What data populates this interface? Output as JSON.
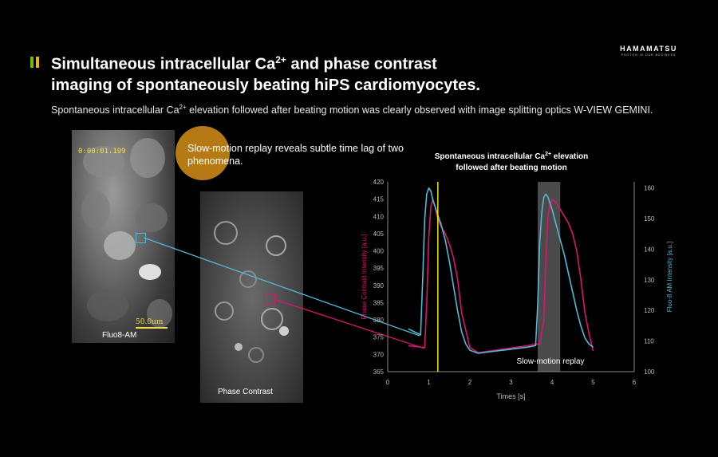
{
  "logo": {
    "name": "HAMAMATSU",
    "tagline": "PHOTON IS OUR BUSINESS"
  },
  "title": {
    "line1_pre": "Simultaneous intracellular Ca",
    "line1_sup": "2+",
    "line1_post": " and phase contrast",
    "line2": "imaging of spontaneously beating hiPS cardiomyocytes."
  },
  "subtitle": {
    "pre": "Spontaneous intracellular Ca",
    "sup": "2+",
    "post": " elevation followed after beating motion was clearly observed with image splitting optics W-VIEW GEMINI."
  },
  "callout": "Slow-motion replay reveals subtle time lag of two phenomena.",
  "fluo_image": {
    "timestamp": "0:00:01.199",
    "scale_bar": "50.0um",
    "label": "Fluo8-AM"
  },
  "phase_image": {
    "label": "Phase Contrast"
  },
  "colors": {
    "phase": "#d9166e",
    "fluo": "#55b8d6",
    "cursor": "#f2e619",
    "accent_green": "#7ab800",
    "accent_yellow": "#e8b800",
    "bubble": "#b57a14"
  },
  "chart_data": {
    "type": "line",
    "title_line1": "Spontaneous intracellular Ca",
    "title_sup": "2+",
    "title_line1_post": " elevation",
    "title_line2": "followed after beating motion",
    "xlabel": "Times [s]",
    "ylabel_left": "Phase Contrast Intensity [a.u.]",
    "ylabel_right": "Fluo-8 AM Intensity [a.u.]",
    "xlim": [
      0,
      6
    ],
    "ylim_left": [
      365,
      420
    ],
    "ylim_right": [
      100,
      162
    ],
    "x_ticks": [
      "0",
      "1",
      "2",
      "3",
      "4",
      "5",
      "6"
    ],
    "y_ticks_left": [
      "365",
      "370",
      "375",
      "380",
      "385",
      "390",
      "395",
      "400",
      "405",
      "410",
      "415",
      "420"
    ],
    "y_ticks_right": [
      "100",
      "110",
      "120",
      "130",
      "140",
      "150",
      "160"
    ],
    "cursor_x": 1.22,
    "highlight_x": [
      3.65,
      4.2
    ],
    "annotation": "Slow-motion replay",
    "series": [
      {
        "axis": "left",
        "x": [
          0.5,
          0.9,
          0.95,
          1.0,
          1.05,
          1.1,
          1.15,
          1.2,
          1.3,
          1.4,
          1.5,
          1.6,
          1.7,
          1.8,
          2.0,
          2.2,
          2.5,
          2.8,
          3.1,
          3.4,
          3.6,
          3.7,
          3.8,
          3.85,
          3.9,
          3.95,
          4.0,
          4.1,
          4.2,
          4.3,
          4.4,
          4.5,
          4.6,
          4.7,
          4.8,
          4.9,
          5.0
        ],
        "y": [
          372.5,
          372,
          385,
          404,
          413,
          415,
          413,
          410,
          407,
          405,
          402,
          398,
          392,
          382,
          372,
          370.5,
          371,
          371.5,
          372,
          372.5,
          373,
          373,
          380,
          398,
          410,
          413.5,
          415,
          414,
          412,
          410,
          408,
          405,
          400,
          392,
          382,
          376,
          371
        ]
      },
      {
        "axis": "right",
        "x": [
          0.5,
          0.8,
          0.85,
          0.9,
          0.95,
          1.0,
          1.05,
          1.1,
          1.2,
          1.3,
          1.4,
          1.5,
          1.6,
          1.7,
          1.8,
          1.9,
          2.0,
          2.2,
          2.5,
          2.8,
          3.1,
          3.4,
          3.6,
          3.65,
          3.7,
          3.75,
          3.8,
          3.85,
          3.9,
          4.0,
          4.1,
          4.2,
          4.3,
          4.4,
          4.5,
          4.6,
          4.7,
          4.8,
          4.9,
          5.0
        ],
        "y": [
          114,
          112,
          130,
          150,
          158,
          160,
          159,
          156,
          152,
          148,
          143,
          136,
          128,
          120,
          113,
          109,
          107,
          106,
          106.5,
          107,
          107.5,
          108,
          108.5,
          122,
          142,
          152,
          157,
          158,
          157,
          153,
          148,
          143,
          138,
          132,
          126,
          120,
          115,
          111,
          109,
          108
        ]
      }
    ]
  }
}
